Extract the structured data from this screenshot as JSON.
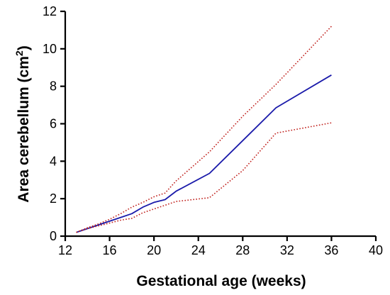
{
  "chart_data": {
    "type": "line",
    "title": "",
    "xlabel": "Gestational age (weeks)",
    "ylabel_main": "Area cerebellum (cm",
    "ylabel_sup": "2",
    "ylabel_close": ")",
    "xlim": [
      12,
      40
    ],
    "ylim": [
      0,
      12
    ],
    "xticks": [
      12,
      16,
      20,
      24,
      28,
      32,
      36,
      40
    ],
    "yticks": [
      0,
      2,
      4,
      6,
      8,
      10,
      12
    ],
    "grid": false,
    "legend": "none",
    "series": [
      {
        "color": "#1a1aaa",
        "style": "solid",
        "x": [
          13,
          14,
          15,
          16,
          17,
          18,
          19,
          20,
          21,
          22,
          25,
          28,
          31,
          36
        ],
        "y": [
          0.2,
          0.4,
          0.6,
          0.8,
          1.0,
          1.2,
          1.55,
          1.8,
          1.95,
          2.4,
          3.35,
          5.1,
          6.85,
          8.6
        ]
      },
      {
        "color": "#c0201c",
        "style": "dotted",
        "x": [
          13,
          14,
          15,
          16,
          17,
          18,
          19,
          20,
          21,
          22,
          25,
          28,
          31,
          36
        ],
        "y": [
          0.2,
          0.45,
          0.65,
          0.9,
          1.2,
          1.55,
          1.8,
          2.1,
          2.3,
          2.95,
          4.5,
          6.4,
          8.1,
          11.2
        ]
      },
      {
        "color": "#c0201c",
        "style": "dotted",
        "x": [
          13,
          14,
          15,
          16,
          17,
          18,
          19,
          20,
          21,
          22,
          25,
          28,
          31,
          36
        ],
        "y": [
          0.2,
          0.4,
          0.55,
          0.7,
          0.85,
          0.95,
          1.25,
          1.45,
          1.65,
          1.85,
          2.05,
          3.5,
          5.5,
          6.05
        ]
      }
    ]
  }
}
